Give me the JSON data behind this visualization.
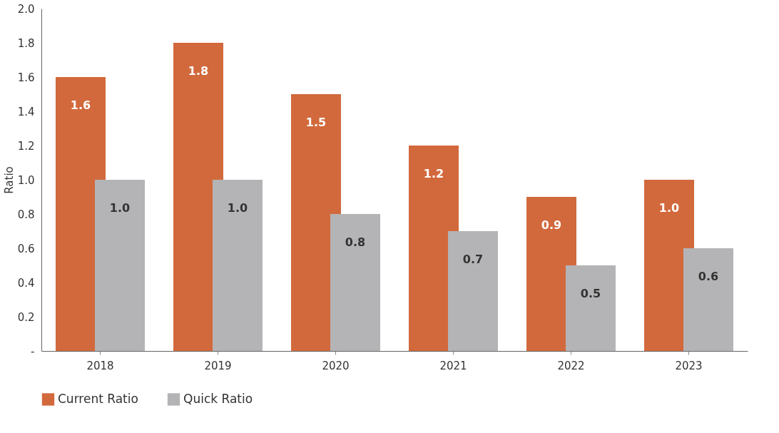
{
  "chart_data": {
    "type": "bar",
    "ylabel": "Ratio",
    "categories": [
      "2018",
      "2019",
      "2020",
      "2021",
      "2022",
      "2023"
    ],
    "series": [
      {
        "name": "Current Ratio",
        "color": "#d2693c",
        "values": [
          1.6,
          1.8,
          1.5,
          1.2,
          0.9,
          1.0
        ],
        "value_labels": [
          "1.6",
          "1.8",
          "1.5",
          "1.2",
          "0.9",
          "1.0"
        ]
      },
      {
        "name": "Quick Ratio",
        "color": "#b4b4b6",
        "values": [
          1.0,
          1.0,
          0.8,
          0.7,
          0.5,
          0.6
        ],
        "value_labels": [
          "1.0",
          "1.0",
          "0.8",
          "0.7",
          "0.5",
          "0.6"
        ]
      }
    ],
    "ylim": [
      0,
      2.0
    ],
    "yticks": [
      {
        "value": 0,
        "label": "-"
      },
      {
        "value": 0.2,
        "label": "0.2"
      },
      {
        "value": 0.4,
        "label": "0.4"
      },
      {
        "value": 0.6,
        "label": "0.6"
      },
      {
        "value": 0.8,
        "label": "0.8"
      },
      {
        "value": 1.0,
        "label": "1.0"
      },
      {
        "value": 1.2,
        "label": "1.2"
      },
      {
        "value": 1.4,
        "label": "1.4"
      },
      {
        "value": 1.6,
        "label": "1.6"
      },
      {
        "value": 1.8,
        "label": "1.8"
      },
      {
        "value": 2.0,
        "label": "2.0"
      }
    ],
    "grid": false,
    "legend": "bottom"
  }
}
